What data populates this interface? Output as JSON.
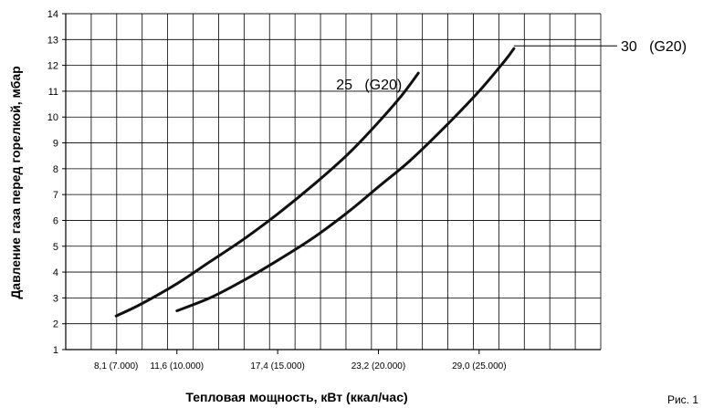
{
  "chart_data": {
    "type": "line",
    "xlabel": "Тепловая мощность, кВт (ккал/час)",
    "ylabel": "Давление газа перед горелкой, мбар",
    "figure_label": "Рис. 1",
    "xlim": [
      5.2,
      36.0
    ],
    "ylim": [
      1,
      14
    ],
    "y_ticks": [
      1,
      2,
      3,
      4,
      5,
      6,
      7,
      8,
      9,
      10,
      11,
      12,
      13,
      14
    ],
    "x_ticks": [
      {
        "value": 8.1,
        "label": "8,1 (7.000)"
      },
      {
        "value": 11.6,
        "label": "11,6 (10.000)"
      },
      {
        "value": 17.4,
        "label": "17,4 (15.000)"
      },
      {
        "value": 23.2,
        "label": "23,2 (20.000)"
      },
      {
        "value": 29.0,
        "label": "29,0 (25.000)"
      }
    ],
    "grid": true,
    "series": [
      {
        "name": "25   (G20)",
        "points": [
          [
            8.1,
            2.3
          ],
          [
            9.5,
            2.75
          ],
          [
            11.6,
            3.55
          ],
          [
            13.5,
            4.4
          ],
          [
            15.5,
            5.3
          ],
          [
            17.4,
            6.25
          ],
          [
            19.5,
            7.4
          ],
          [
            21.5,
            8.6
          ],
          [
            23.2,
            9.8
          ],
          [
            24.5,
            10.8
          ],
          [
            25.5,
            11.7
          ]
        ]
      },
      {
        "name": "30   (G20)",
        "points": [
          [
            11.6,
            2.5
          ],
          [
            13.5,
            3.0
          ],
          [
            15.5,
            3.7
          ],
          [
            17.4,
            4.45
          ],
          [
            19.5,
            5.35
          ],
          [
            21.5,
            6.35
          ],
          [
            23.2,
            7.3
          ],
          [
            25.0,
            8.3
          ],
          [
            27.0,
            9.6
          ],
          [
            29.0,
            11.0
          ],
          [
            30.5,
            12.2
          ],
          [
            31.0,
            12.65
          ]
        ]
      }
    ]
  }
}
